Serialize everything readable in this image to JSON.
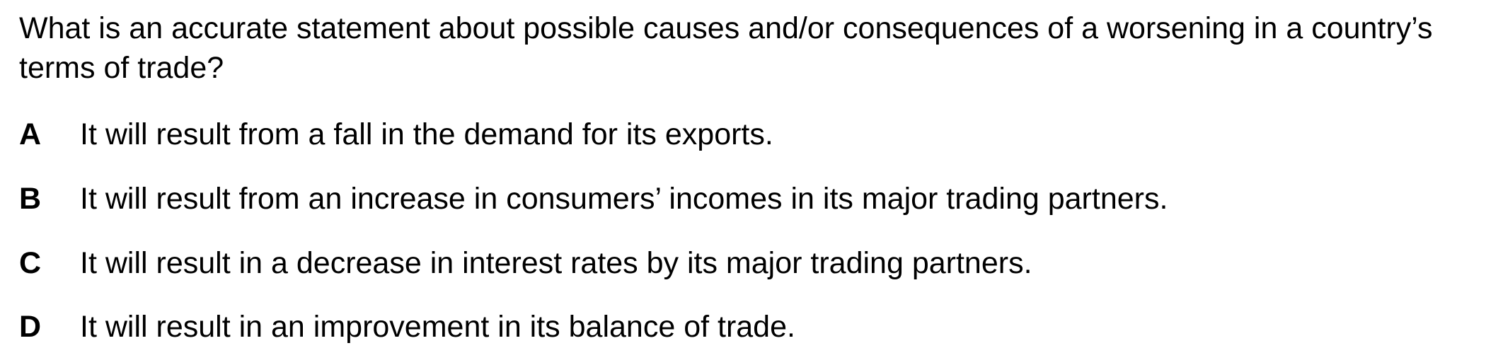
{
  "question": {
    "text": "What is an accurate statement about possible causes and/or consequences of a worsening in a country’s terms of trade?"
  },
  "options": [
    {
      "letter": "A",
      "text": "It will result from a fall in the demand for its exports."
    },
    {
      "letter": "B",
      "text": "It will result from an increase in consumers’ incomes in its major trading partners."
    },
    {
      "letter": "C",
      "text": "It will result in a decrease in interest rates by its major trading partners."
    },
    {
      "letter": "D",
      "text": "It will result in an improvement in its balance of trade."
    }
  ]
}
